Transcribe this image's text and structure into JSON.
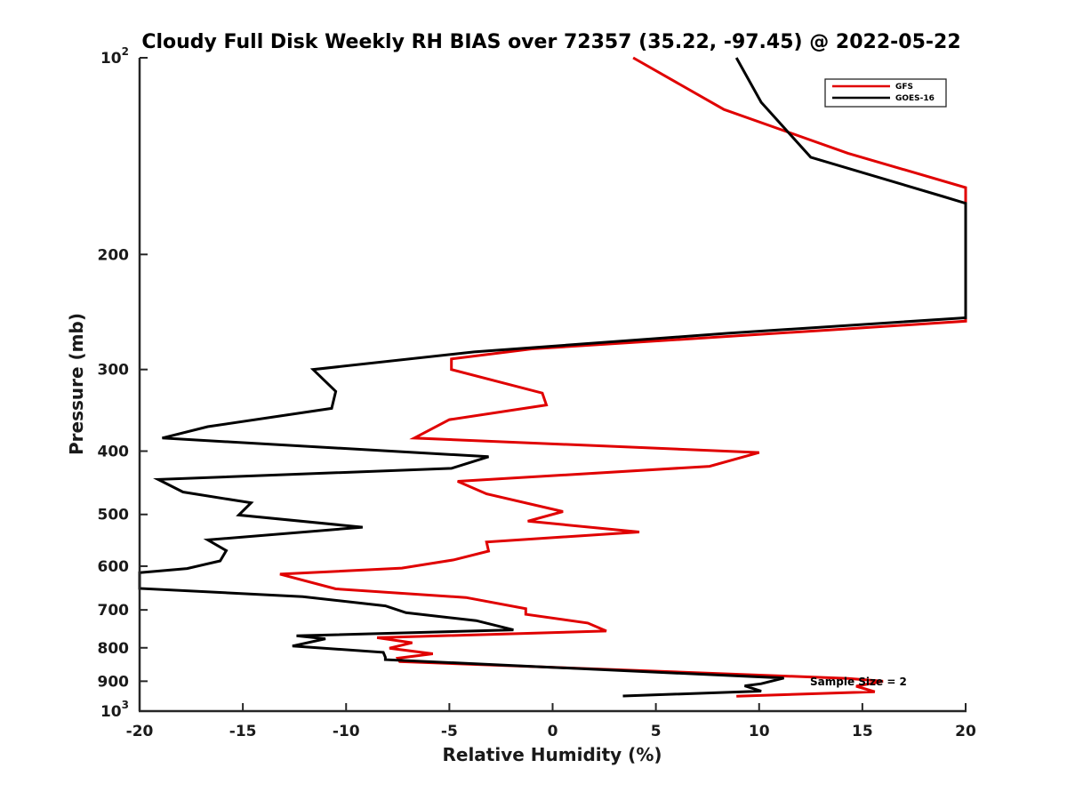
{
  "chart_data": {
    "type": "line",
    "title": "Cloudy Full Disk Weekly RH BIAS over 72357 (35.22, -97.45) @ 2022-05-22",
    "xlabel": "Relative Humidity (%)",
    "ylabel": "Pressure (mb)",
    "xlim": [
      -20,
      20
    ],
    "ylim": [
      100,
      1000
    ],
    "y_scale": "log",
    "y_reversed": true,
    "x_ticks": [
      -20,
      -15,
      -10,
      -5,
      0,
      5,
      10,
      15,
      20
    ],
    "x_tick_labels": [
      "-20",
      "-15",
      "-10",
      "-5",
      "0",
      "5",
      "10",
      "15",
      "20"
    ],
    "y_ticks": [
      100,
      200,
      300,
      400,
      500,
      600,
      700,
      800,
      900,
      1000
    ],
    "y_tick_labels": [
      {
        "base": "10",
        "sup": "2"
      },
      {
        "base": "200",
        "sup": ""
      },
      {
        "base": "300",
        "sup": ""
      },
      {
        "base": "400",
        "sup": ""
      },
      {
        "base": "500",
        "sup": ""
      },
      {
        "base": "600",
        "sup": ""
      },
      {
        "base": "700",
        "sup": ""
      },
      {
        "base": "800",
        "sup": ""
      },
      {
        "base": "900",
        "sup": ""
      },
      {
        "base": "10",
        "sup": "3"
      }
    ],
    "grid": false,
    "legend": {
      "position": "top-right",
      "entries": [
        "GFS",
        "GOES-16"
      ]
    },
    "annotation": "Sample Size = 2",
    "series": [
      {
        "name": "GFS",
        "color": "#e00000",
        "points": [
          [
            3.9,
            100
          ],
          [
            8.3,
            120
          ],
          [
            14.3,
            140
          ],
          [
            20,
            158
          ],
          [
            20,
            253
          ],
          [
            13.4,
            261
          ],
          [
            -1.0,
            279
          ],
          [
            -4.9,
            289
          ],
          [
            -4.9,
            300
          ],
          [
            -0.5,
            326
          ],
          [
            -0.3,
            340
          ],
          [
            -5.0,
            358
          ],
          [
            -6.7,
            382
          ],
          [
            10.0,
            402
          ],
          [
            7.6,
            422
          ],
          [
            -4.6,
            445
          ],
          [
            -3.2,
            465
          ],
          [
            0.5,
            495
          ],
          [
            -1.2,
            512
          ],
          [
            4.2,
            532
          ],
          [
            -3.2,
            551
          ],
          [
            -3.1,
            569
          ],
          [
            -4.8,
            587
          ],
          [
            -7.3,
            604
          ],
          [
            -13.2,
            617
          ],
          [
            -10.5,
            650
          ],
          [
            -4.2,
            670
          ],
          [
            -1.3,
            697
          ],
          [
            -1.3,
            711
          ],
          [
            1.7,
            733
          ],
          [
            2.6,
            754
          ],
          [
            -8.5,
            772
          ],
          [
            -6.8,
            786
          ],
          [
            -7.9,
            801
          ],
          [
            -5.8,
            817
          ],
          [
            -7.5,
            830
          ],
          [
            -7.4,
            840
          ],
          [
            14.3,
            891
          ],
          [
            16.0,
            900
          ],
          [
            14.7,
            916
          ],
          [
            15.6,
            934
          ],
          [
            8.9,
            949
          ]
        ]
      },
      {
        "name": "GOES-16",
        "color": "#000000",
        "points": [
          [
            8.9,
            100
          ],
          [
            10.1,
            117
          ],
          [
            12.5,
            142
          ],
          [
            18.9,
            163
          ],
          [
            20,
            167
          ],
          [
            20,
            250
          ],
          [
            8.5,
            264
          ],
          [
            -3.8,
            282
          ],
          [
            -11.6,
            300
          ],
          [
            -10.5,
            324
          ],
          [
            -10.7,
            344
          ],
          [
            -16.7,
            367
          ],
          [
            -18.9,
            382
          ],
          [
            -3.1,
            408
          ],
          [
            -4.9,
            425
          ],
          [
            -19.1,
            442
          ],
          [
            -17.9,
            462
          ],
          [
            -14.6,
            480
          ],
          [
            -15.2,
            501
          ],
          [
            -9.2,
            523
          ],
          [
            -16.7,
            547
          ],
          [
            -15.8,
            568
          ],
          [
            -16.1,
            589
          ],
          [
            -17.7,
            605
          ],
          [
            -20.0,
            614
          ],
          [
            -20.0,
            639
          ],
          [
            -20.0,
            649
          ],
          [
            -12.1,
            668
          ],
          [
            -8.1,
            690
          ],
          [
            -7.1,
            707
          ],
          [
            -3.7,
            727
          ],
          [
            -1.9,
            751
          ],
          [
            -12.4,
            767
          ],
          [
            -11.0,
            775
          ],
          [
            -12.6,
            795
          ],
          [
            -8.2,
            813
          ],
          [
            -8.1,
            827
          ],
          [
            -8.1,
            834
          ],
          [
            11.2,
            890
          ],
          [
            10.1,
            908
          ],
          [
            9.3,
            915
          ],
          [
            10.1,
            932
          ],
          [
            3.4,
            948
          ]
        ]
      }
    ]
  }
}
